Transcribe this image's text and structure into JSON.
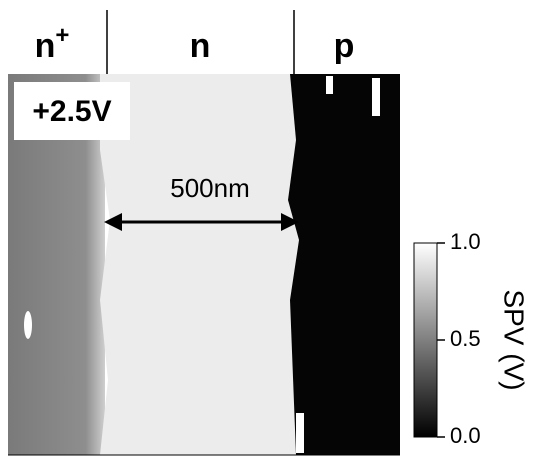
{
  "header": {
    "regions": [
      {
        "label": "n",
        "superscript": "+"
      },
      {
        "label": "n"
      },
      {
        "label": "p"
      }
    ]
  },
  "bias_label": "+2.5V",
  "scale_label": "500nm",
  "colorbar": {
    "label": "SPV (V)",
    "lim": [
      0,
      1
    ],
    "ticks": [
      {
        "value": 1,
        "label": "1.0"
      },
      {
        "value": 0.5,
        "label": "0.5"
      },
      {
        "value": 0,
        "label": "0.0"
      }
    ]
  }
}
